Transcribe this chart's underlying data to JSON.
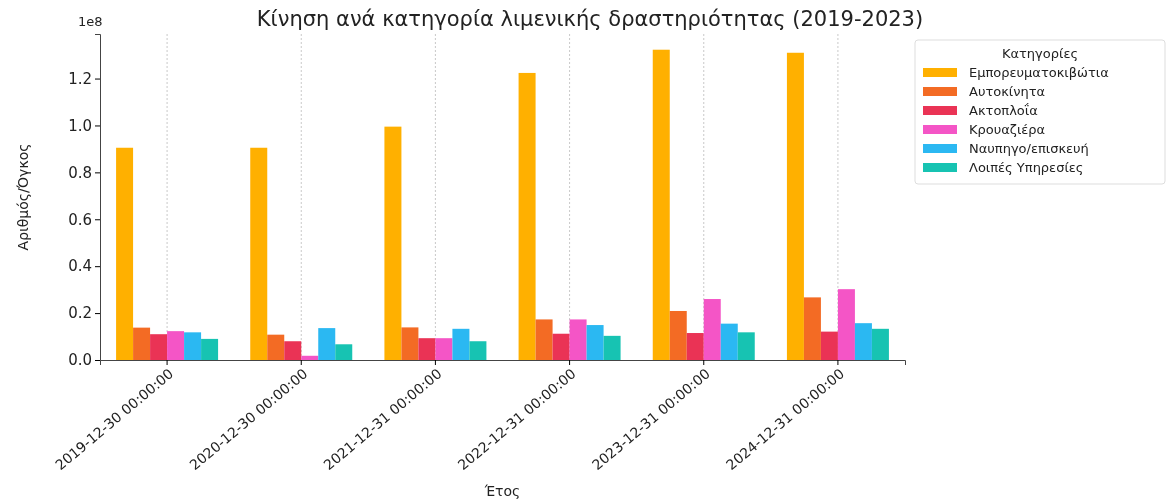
{
  "chart_data": {
    "type": "bar",
    "title": "Κίνηση ανά κατηγορία λιμενικής δραστηριότητας (2019-2023)",
    "xlabel": "Έτος",
    "ylabel": "Αριθμός/Όγκος",
    "legend_title": "Κατηγορίες",
    "annotations": [
      "1e8"
    ],
    "categories": [
      "2019-12-30 00:00:00",
      "2020-12-30 00:00:00",
      "2021-12-31 00:00:00",
      "2022-12-31 00:00:00",
      "2023-12-31 00:00:00",
      "2024-12-31 00:00:00"
    ],
    "series": [
      {
        "name": "Εμπορευματοκιβώτια",
        "color": "#ffb000",
        "values": [
          0.905,
          0.905,
          0.995,
          1.224,
          1.323,
          1.31
        ]
      },
      {
        "name": "Αυτοκίνητα",
        "color": "#f36b24",
        "values": [
          0.138,
          0.108,
          0.139,
          0.173,
          0.209,
          0.267
        ]
      },
      {
        "name": "Ακτοπλοΐα",
        "color": "#ea3355",
        "values": [
          0.11,
          0.08,
          0.093,
          0.112,
          0.115,
          0.121
        ]
      },
      {
        "name": "Κρουαζιέρα",
        "color": "#f455c6",
        "values": [
          0.123,
          0.018,
          0.093,
          0.173,
          0.26,
          0.302
        ]
      },
      {
        "name": "Ναυπηγο/επισκευή",
        "color": "#2bb8f2",
        "values": [
          0.118,
          0.136,
          0.133,
          0.149,
          0.155,
          0.157
        ]
      },
      {
        "name": "Λοιπές Υπηρεσίες",
        "color": "#17c3b2",
        "values": [
          0.09,
          0.067,
          0.08,
          0.103,
          0.118,
          0.133
        ]
      }
    ],
    "ylim": [
      0,
      1.39
    ],
    "yticks": [
      {
        "value": 0,
        "label": "0.0"
      },
      {
        "value": 0.2,
        "label": "0.2"
      },
      {
        "value": 0.4,
        "label": "0.4"
      },
      {
        "value": 0.6,
        "label": "0.6"
      },
      {
        "value": 0.8,
        "label": "0.8"
      },
      {
        "value": 1.0,
        "label": "1.0"
      },
      {
        "value": 1.2,
        "label": "1.2"
      }
    ],
    "grid": "x",
    "legend": "right"
  }
}
